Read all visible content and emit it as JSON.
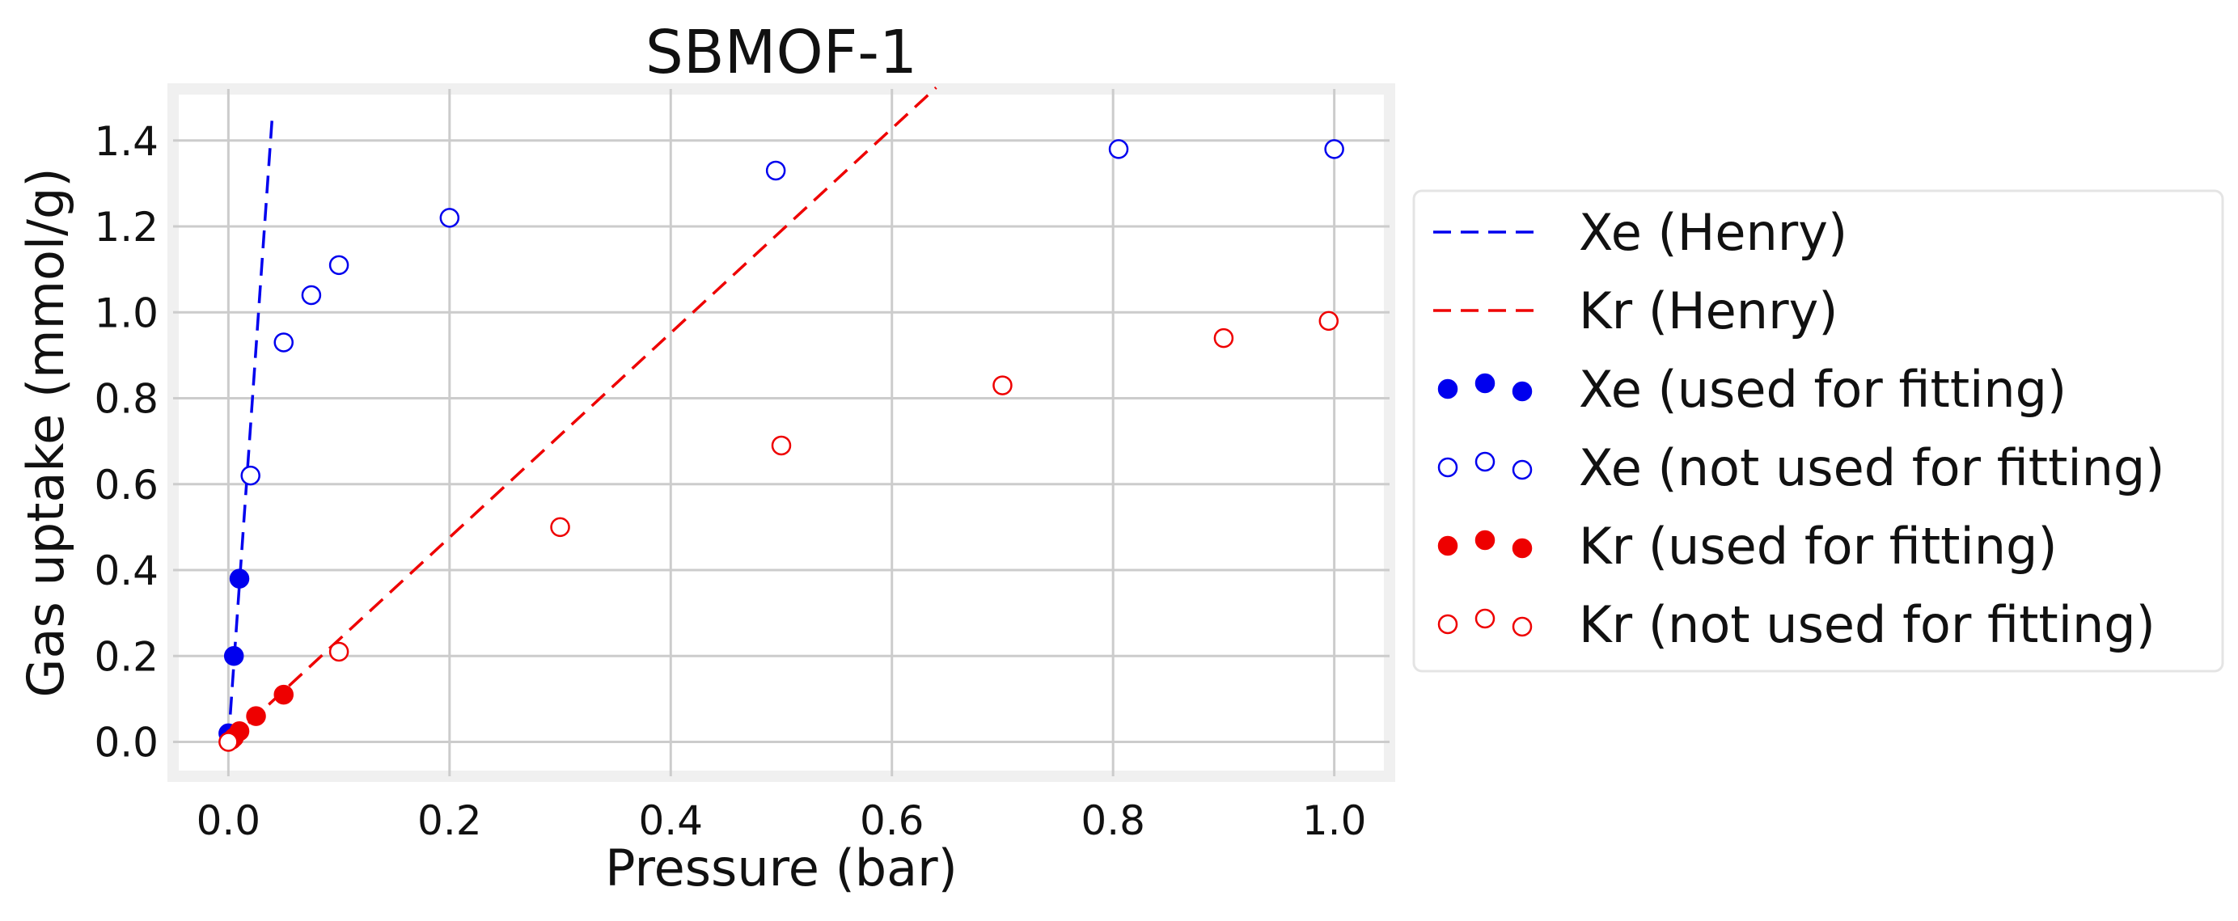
{
  "chart_data": {
    "type": "scatter",
    "title": "SBMOF-1",
    "xlabel": "Pressure (bar)",
    "ylabel": "Gas uptake (mmol/g)",
    "xlim": [
      -0.05,
      1.05
    ],
    "ylim": [
      -0.08,
      1.52
    ],
    "xticks": [
      0.0,
      0.2,
      0.4,
      0.6,
      0.8,
      1.0
    ],
    "xtick_labels": [
      "0.0",
      "0.2",
      "0.4",
      "0.6",
      "0.8",
      "1.0"
    ],
    "yticks": [
      0.0,
      0.2,
      0.4,
      0.6,
      0.8,
      1.0,
      1.2,
      1.4
    ],
    "ytick_labels": [
      "0.0",
      "0.2",
      "0.4",
      "0.6",
      "0.8",
      "1.0",
      "1.2",
      "1.4"
    ],
    "grid": true,
    "legend_position": "outside-right",
    "lines": [
      {
        "name": "Xe (Henry)",
        "color": "#0000ee",
        "style": "dashed",
        "slope": 36.7,
        "x_range": [
          0.0,
          0.0395
        ]
      },
      {
        "name": "Kr (Henry)",
        "color": "#ee0000",
        "style": "dashed",
        "slope": 2.38,
        "x_range": [
          0.0,
          0.64
        ]
      }
    ],
    "series": [
      {
        "name": "Xe (used for fitting)",
        "color": "#0000ee",
        "filled": true,
        "points": [
          [
            0.0,
            0.02
          ],
          [
            0.005,
            0.2
          ],
          [
            0.01,
            0.38
          ]
        ]
      },
      {
        "name": "Xe (not used for fitting)",
        "color": "#0000ee",
        "filled": false,
        "points": [
          [
            0.02,
            0.62
          ],
          [
            0.05,
            0.93
          ],
          [
            0.075,
            1.04
          ],
          [
            0.1,
            1.11
          ],
          [
            0.2,
            1.22
          ],
          [
            0.495,
            1.33
          ],
          [
            0.805,
            1.38
          ],
          [
            1.0,
            1.38
          ]
        ]
      },
      {
        "name": "Kr (used for fitting)",
        "color": "#ee0000",
        "filled": true,
        "points": [
          [
            0.003,
            0.005
          ],
          [
            0.005,
            0.01
          ],
          [
            0.01,
            0.025
          ],
          [
            0.025,
            0.06
          ],
          [
            0.05,
            0.11
          ]
        ]
      },
      {
        "name": "Kr (not used for fitting)",
        "color": "#ee0000",
        "filled": false,
        "points": [
          [
            0.0,
            0.0
          ],
          [
            0.1,
            0.21
          ],
          [
            0.3,
            0.5
          ],
          [
            0.5,
            0.69
          ],
          [
            0.7,
            0.83
          ],
          [
            0.9,
            0.94
          ],
          [
            0.995,
            0.98
          ]
        ]
      }
    ]
  }
}
